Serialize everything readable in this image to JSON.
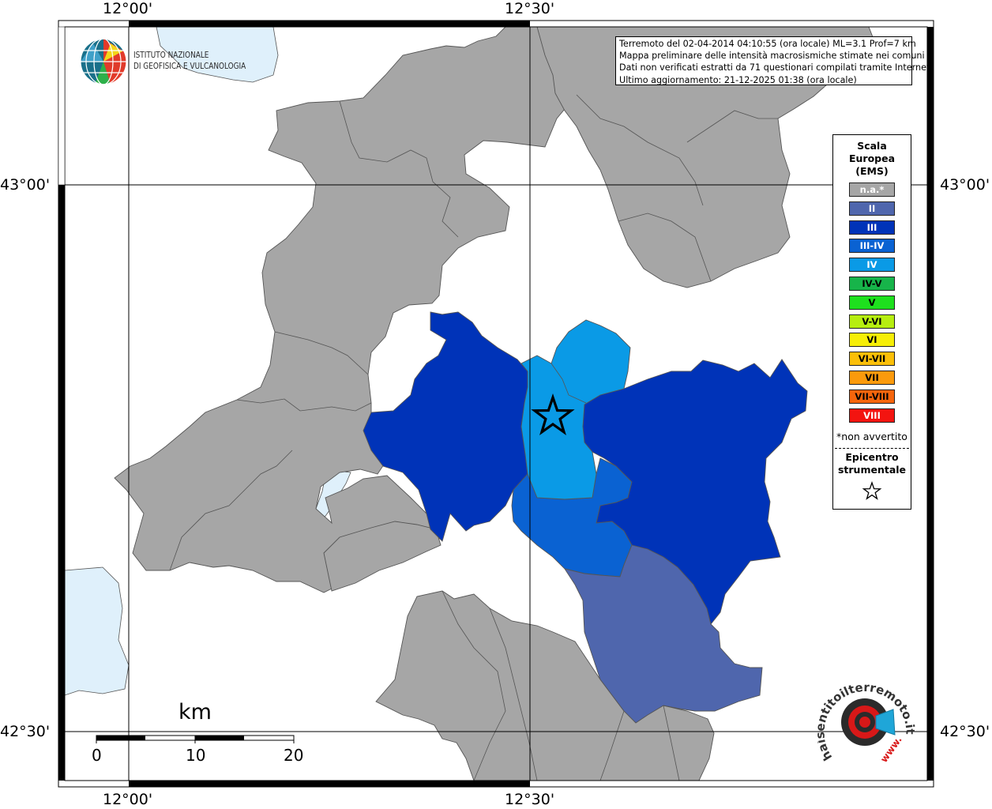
{
  "map": {
    "coordinates": {
      "top_lon_left": "12°00'",
      "top_lon_right": "12°30'",
      "bottom_lon_left": "12°00'",
      "bottom_lon_right": "12°30'",
      "left_lat_top": "43°00'",
      "left_lat_bottom": "42°30'",
      "right_lat_top": "43°00'",
      "right_lat_bottom": "42°30'"
    },
    "info_lines": [
      "Terremoto del 02-04-2014 04:10:55 (ora locale) ML=3.1 Prof=7 km",
      "Mappa preliminare delle intensità macrosismiche stimate nei comuni",
      "Dati non verificati estratti da 71 questionari compilati tramite Internet.",
      "Ultimo aggiornamento: 21-12-2025 01:38 (ora locale)"
    ],
    "institute": {
      "line1": "ISTITUTO NAZIONALE",
      "line2": "DI GEOFISICA E VULCANOLOGIA"
    },
    "scale_bar": {
      "unit": "km",
      "ticks": [
        "0",
        "10",
        "20"
      ]
    },
    "epicenter_icon": "star-icon",
    "watermark": {
      "text": "haisentitoilterremoto.it",
      "url": "www."
    }
  },
  "legend": {
    "title_lines": [
      "Scala",
      "Europea",
      "(EMS)"
    ],
    "items": [
      {
        "label": "n.a.*",
        "color": "#a6a6a6",
        "text_color": "#ffffff"
      },
      {
        "label": "II",
        "color": "#4f66ad",
        "text_color": "#ffffff"
      },
      {
        "label": "III",
        "color": "#0033b8",
        "text_color": "#ffffff"
      },
      {
        "label": "III-IV",
        "color": "#0a62d2",
        "text_color": "#ffffff"
      },
      {
        "label": "IV",
        "color": "#0a9ae6",
        "text_color": "#ffffff"
      },
      {
        "label": "IV-V",
        "color": "#17b44a",
        "text_color": "#000000"
      },
      {
        "label": "V",
        "color": "#1ee01e",
        "text_color": "#000000"
      },
      {
        "label": "V-VI",
        "color": "#b6ee10",
        "text_color": "#000000"
      },
      {
        "label": "VI",
        "color": "#f6ee06",
        "text_color": "#000000"
      },
      {
        "label": "VI-VII",
        "color": "#fbbf08",
        "text_color": "#000000"
      },
      {
        "label": "VII",
        "color": "#fb9a0c",
        "text_color": "#000000"
      },
      {
        "label": "VII-VIII",
        "color": "#f6650c",
        "text_color": "#000000"
      },
      {
        "label": "VIII",
        "color": "#f31410",
        "text_color": "#ffffff"
      }
    ],
    "note": "*non avvertito",
    "epicenter_lines": [
      "Epicentro",
      "strumentale"
    ]
  }
}
